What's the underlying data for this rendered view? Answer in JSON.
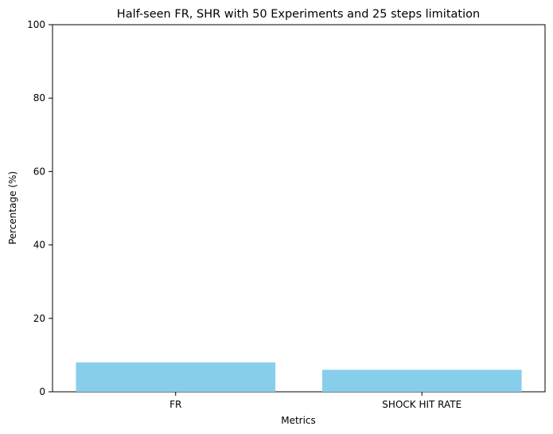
{
  "chart_data": {
    "type": "bar",
    "title": "Half-seen FR, SHR with 50 Experiments and 25 steps limitation",
    "xlabel": "Metrics",
    "ylabel": "Percentage (%)",
    "categories": [
      "FR",
      "SHOCK HIT RATE"
    ],
    "values": [
      8,
      6
    ],
    "ylim": [
      0,
      100
    ],
    "yticks": [
      0,
      20,
      40,
      60,
      80,
      100
    ],
    "grid": false,
    "legend": "none",
    "bar_color": "#87CEEB"
  }
}
